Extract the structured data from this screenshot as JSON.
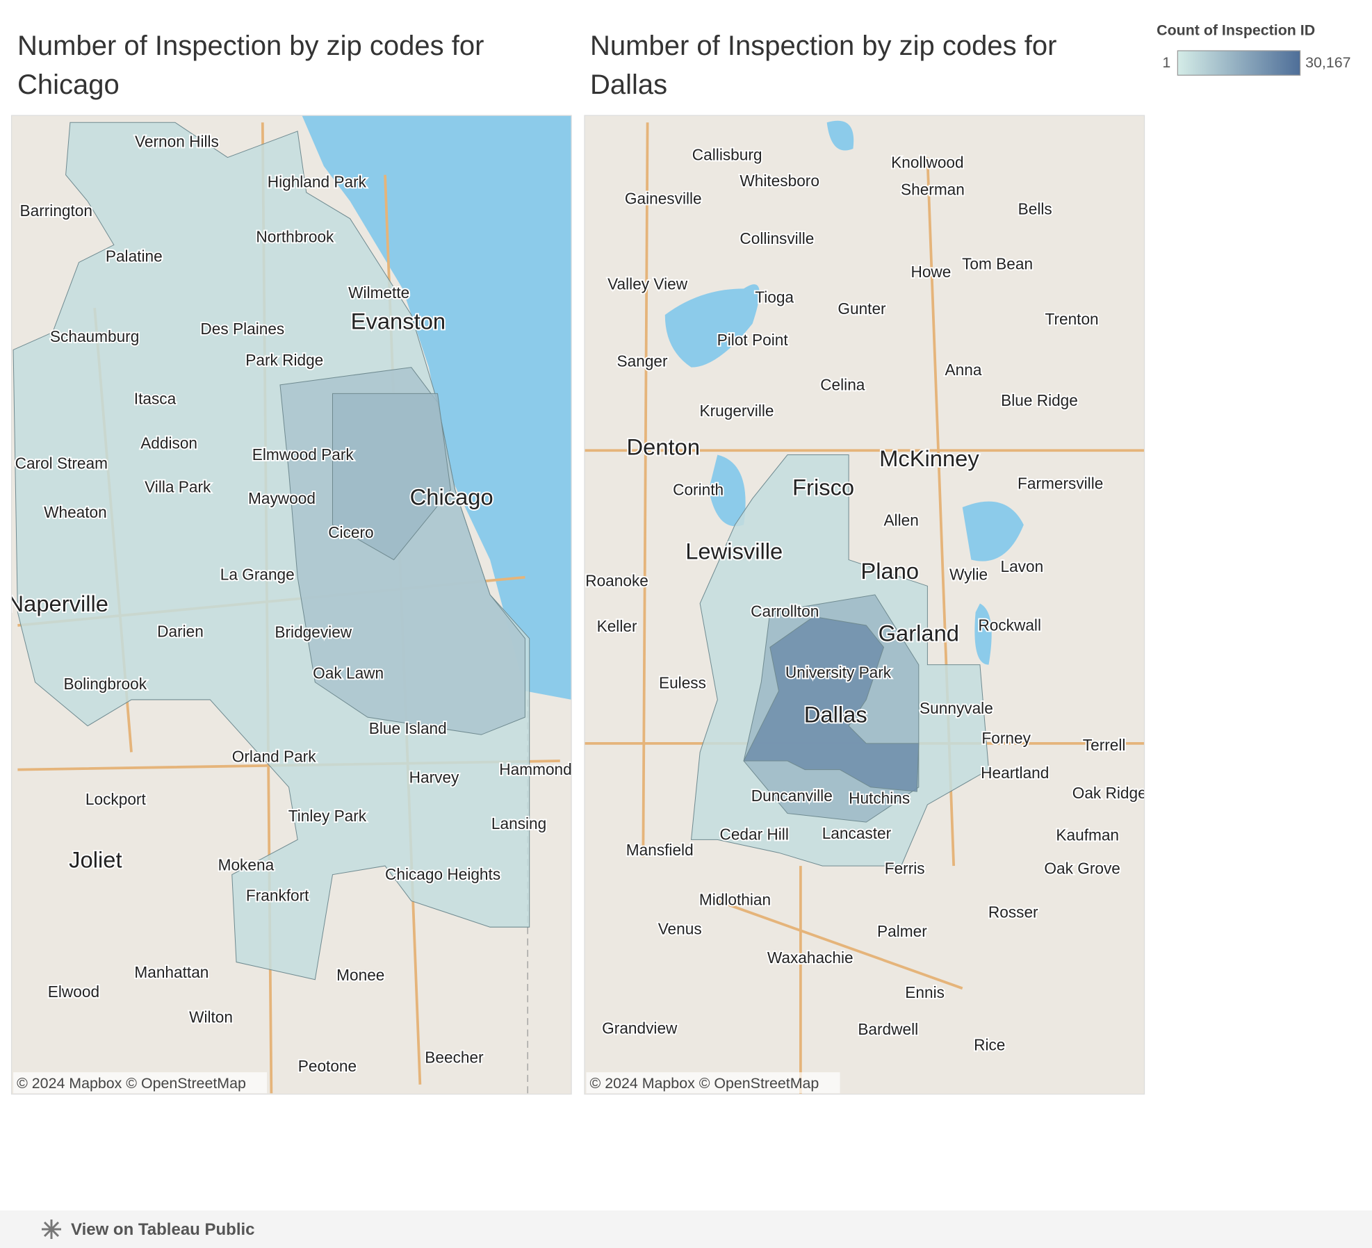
{
  "dashboard": {
    "maps": [
      {
        "title": "Number of Inspection by zip codes for Chicago",
        "places": [
          "Vernon Hills",
          "Highland Park",
          "Barrington",
          "Northbrook",
          "Palatine",
          "Wilmette",
          "Evanston",
          "Schaumburg",
          "Des Plaines",
          "Park Ridge",
          "Itasca",
          "Addison",
          "Elmwood Park",
          "Carol Stream",
          "Chicago",
          "Villa Park",
          "Maywood",
          "Wheaton",
          "Cicero",
          "La Grange",
          "Naperville",
          "Darien",
          "Bridgeview",
          "Bolingbrook",
          "Oak Lawn",
          "Blue Island",
          "Orland Park",
          "Harvey",
          "Hammond",
          "Lockport",
          "Tinley Park",
          "Lansing",
          "Joliet",
          "Mokena",
          "Chicago Heights",
          "Frankfort",
          "Manhattan",
          "Monee",
          "Elwood",
          "Wilton",
          "Beecher",
          "Peotone"
        ],
        "attribution": "© 2024 Mapbox © OpenStreetMap"
      },
      {
        "title": "Number of Inspection by zip codes for Dallas",
        "places": [
          "Callisburg",
          "Knollwood",
          "Whitesboro",
          "Gainesville",
          "Sherman",
          "Bells",
          "Collinsville",
          "Howe",
          "Tom Bean",
          "Valley View",
          "Tioga",
          "Gunter",
          "Trenton",
          "Pilot Point",
          "Sanger",
          "Anna",
          "Celina",
          "Blue Ridge",
          "Krugerville",
          "Denton",
          "McKinney",
          "Corinth",
          "Frisco",
          "Farmersville",
          "Allen",
          "Lewisville",
          "Plano",
          "Wylie",
          "Lavon",
          "Roanoke",
          "Carrollton",
          "Rockwall",
          "Keller",
          "Garland",
          "Euless",
          "University Park",
          "Dallas",
          "Sunnyvale",
          "Forney",
          "Terrell",
          "Heartland",
          "Oak Ridge",
          "Duncanville",
          "Hutchins",
          "Cedar Hill",
          "Lancaster",
          "Kaufman",
          "Mansfield",
          "Ferris",
          "Oak Grove",
          "Midlothian",
          "Rosser",
          "Palmer",
          "Venus",
          "Waxahachie",
          "Ennis",
          "Grandview",
          "Bardwell",
          "Rice"
        ],
        "attribution": "© 2024 Mapbox © OpenStreetMap"
      }
    ],
    "legend": {
      "title": "Count of Inspection ID",
      "min": 1,
      "max": {
        "value": 30167,
        "label": "30,167"
      },
      "colors": [
        "#d4ece7",
        "#4e6e98"
      ]
    }
  },
  "footer": {
    "link": "View on Tableau Public"
  }
}
